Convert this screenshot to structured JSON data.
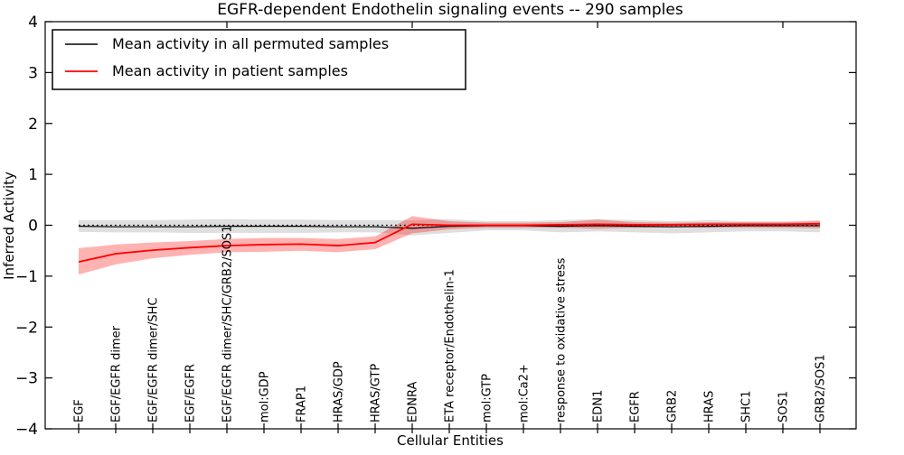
{
  "chart_data": {
    "type": "line",
    "title": "EGFR-dependent Endothelin signaling events -- 290 samples",
    "xlabel": "Cellular Entities",
    "ylabel": "Inferred Activity",
    "ylim": [
      -4,
      4
    ],
    "yticks": [
      -4,
      -3,
      -2,
      -1,
      0,
      1,
      2,
      3,
      4
    ],
    "grid": false,
    "legend_position": "upper left",
    "zero_reference_line": {
      "y": 0,
      "style": "dotted",
      "color": "#000000"
    },
    "categories": [
      "EGF",
      "EGF/EGFR dimer",
      "EGF/EGFR dimer/SHC",
      "EGF/EGFR",
      "EGF/EGFR dimer/SHC/GRB2/SOS1",
      "mol:GDP",
      "FRAP1",
      "HRAS/GDP",
      "HRAS/GTP",
      "EDNRA",
      "ETA receptor/Endothelin-1",
      "mol:GTP",
      "mol:Ca2+",
      "response to oxidative stress",
      "EDN1",
      "EGFR",
      "GRB2",
      "HRAS",
      "SHC1",
      "SOS1",
      "GRB2/SOS1"
    ],
    "series": [
      {
        "name": "Mean activity in all permuted samples",
        "color": "#000000",
        "line_width": 1.2,
        "band_color": "#808080",
        "band_opacity": 0.25,
        "values": [
          -0.02,
          -0.03,
          -0.03,
          -0.03,
          -0.02,
          -0.02,
          -0.02,
          -0.03,
          -0.03,
          -0.06,
          -0.02,
          -0.01,
          -0.01,
          -0.02,
          -0.01,
          -0.02,
          -0.03,
          -0.02,
          -0.01,
          -0.01,
          -0.01
        ],
        "band_upper": [
          0.1,
          0.1,
          0.1,
          0.11,
          0.12,
          0.11,
          0.11,
          0.1,
          0.1,
          0.1,
          0.12,
          0.08,
          0.08,
          0.1,
          0.12,
          0.1,
          0.08,
          0.1,
          0.08,
          0.08,
          0.1
        ],
        "band_lower": [
          -0.13,
          -0.14,
          -0.14,
          -0.15,
          -0.15,
          -0.15,
          -0.15,
          -0.14,
          -0.14,
          -0.2,
          -0.15,
          -0.1,
          -0.1,
          -0.14,
          -0.12,
          -0.14,
          -0.16,
          -0.14,
          -0.12,
          -0.12,
          -0.14
        ]
      },
      {
        "name": "Mean activity in patient samples",
        "color": "#ff0000",
        "line_width": 1.8,
        "band_color": "#ff0000",
        "band_opacity": 0.3,
        "values": [
          -0.72,
          -0.56,
          -0.49,
          -0.44,
          -0.4,
          -0.38,
          -0.37,
          -0.4,
          -0.34,
          0.02,
          0.0,
          0.0,
          0.0,
          0.01,
          0.02,
          0.01,
          0.01,
          0.02,
          0.02,
          0.02,
          0.03
        ],
        "band_upper": [
          -0.45,
          -0.38,
          -0.34,
          -0.31,
          -0.27,
          -0.25,
          -0.25,
          -0.27,
          -0.22,
          0.18,
          0.08,
          0.05,
          0.05,
          0.06,
          0.11,
          0.06,
          0.05,
          0.06,
          0.06,
          0.06,
          0.08
        ],
        "band_lower": [
          -0.97,
          -0.77,
          -0.65,
          -0.58,
          -0.53,
          -0.52,
          -0.5,
          -0.53,
          -0.47,
          -0.16,
          -0.08,
          -0.05,
          -0.05,
          -0.05,
          -0.07,
          -0.05,
          -0.04,
          -0.05,
          -0.05,
          -0.05,
          -0.06
        ]
      }
    ]
  }
}
